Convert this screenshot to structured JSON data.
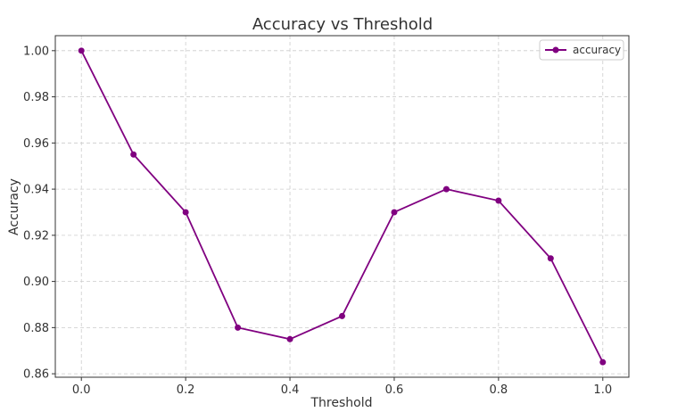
{
  "chart_data": {
    "type": "line",
    "title": "Accuracy vs Threshold",
    "xlabel": "Threshold",
    "ylabel": "Accuracy",
    "x": [
      0.0,
      0.1,
      0.2,
      0.3,
      0.4,
      0.5,
      0.6,
      0.7,
      0.8,
      0.9,
      1.0
    ],
    "series": [
      {
        "name": "accuracy",
        "color": "#800080",
        "values": [
          1.0,
          0.955,
          0.93,
          0.88,
          0.875,
          0.885,
          0.93,
          0.94,
          0.935,
          0.91,
          0.865
        ]
      }
    ],
    "xlim": [
      -0.05,
      1.05
    ],
    "ylim": [
      0.8585,
      1.0065
    ],
    "xticks": [
      "0.0",
      "0.2",
      "0.4",
      "0.6",
      "0.8",
      "1.0"
    ],
    "yticks": [
      "0.86",
      "0.88",
      "0.90",
      "0.92",
      "0.94",
      "0.96",
      "0.98",
      "1.00"
    ],
    "grid": true,
    "legend_position": "top-right"
  }
}
